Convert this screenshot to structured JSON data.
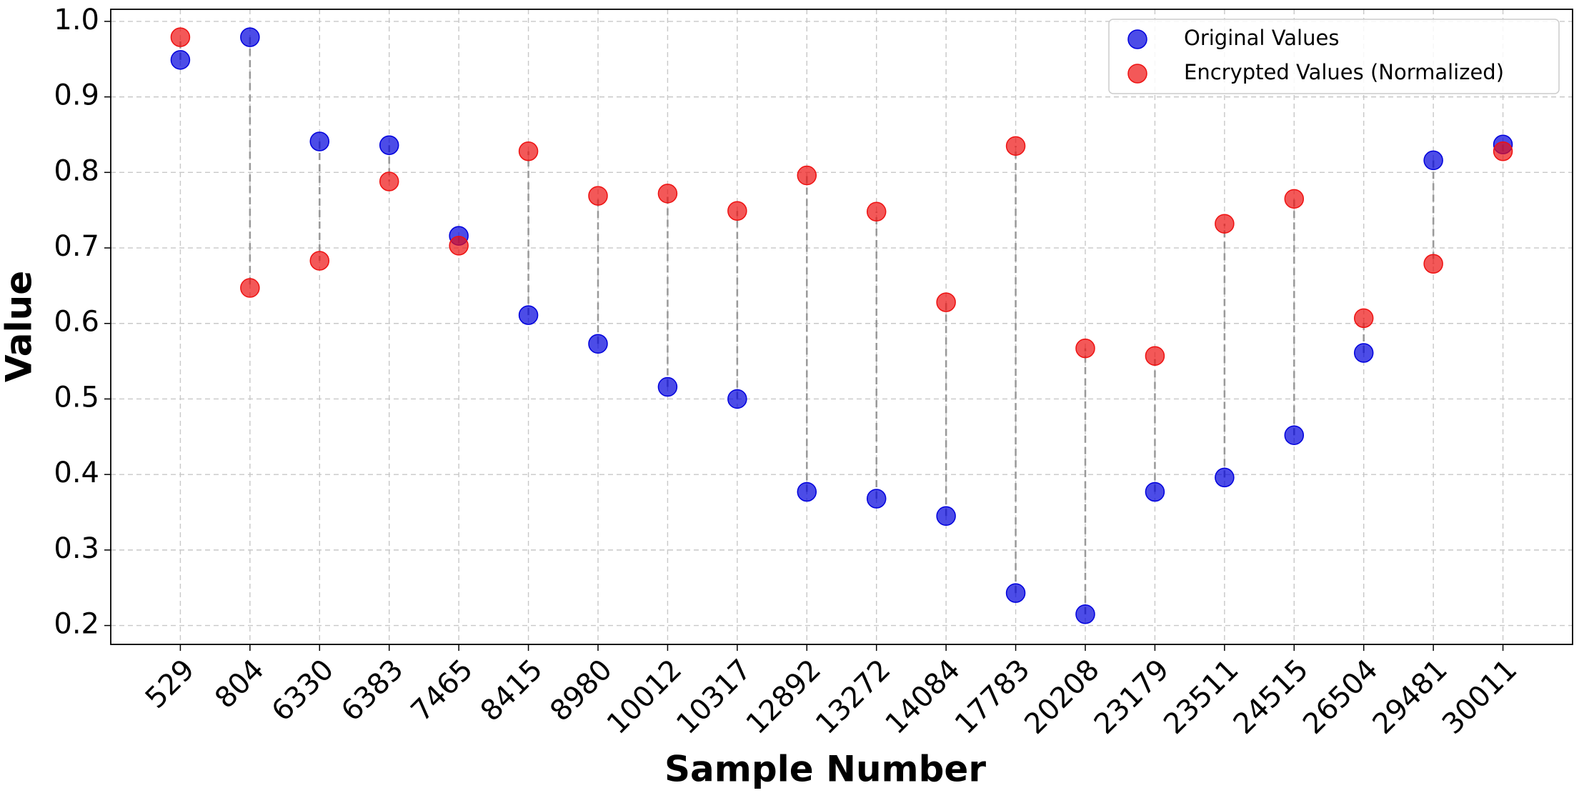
{
  "chart_data": {
    "type": "scatter",
    "x_label": "Sample Number",
    "y_label": "Value",
    "categories": [
      "529",
      "804",
      "6330",
      "6383",
      "7465",
      "8415",
      "8980",
      "10012",
      "10317",
      "12892",
      "13272",
      "14084",
      "17783",
      "20208",
      "23179",
      "23511",
      "24515",
      "26504",
      "29481",
      "30011"
    ],
    "series": [
      {
        "name": "Original Values",
        "color": "#0000dd",
        "values": [
          0.949,
          0.979,
          0.841,
          0.836,
          0.716,
          0.611,
          0.573,
          0.516,
          0.5,
          0.377,
          0.368,
          0.345,
          0.243,
          0.215,
          0.377,
          0.396,
          0.452,
          0.561,
          0.816,
          0.837
        ]
      },
      {
        "name": "Encrypted Values (Normalized)",
        "color": "#ee1111",
        "values": [
          0.979,
          0.647,
          0.683,
          0.788,
          0.703,
          0.828,
          0.769,
          0.772,
          0.749,
          0.796,
          0.748,
          0.628,
          0.835,
          0.567,
          0.557,
          0.732,
          0.765,
          0.607,
          0.679,
          0.828
        ]
      }
    ],
    "ylim": [
      0.175,
      1.016
    ],
    "yticks": [
      {
        "value": 0.2,
        "label": "0.2"
      },
      {
        "value": 0.3,
        "label": "0.3"
      },
      {
        "value": 0.4,
        "label": "0.4"
      },
      {
        "value": 0.5,
        "label": "0.5"
      },
      {
        "value": 0.6,
        "label": "0.6"
      },
      {
        "value": 0.7,
        "label": "0.7"
      },
      {
        "value": 0.8,
        "label": "0.8"
      },
      {
        "value": 0.9,
        "label": "0.9"
      },
      {
        "value": 1.0,
        "label": "1.0"
      }
    ],
    "grid": true,
    "legend": "upper right"
  }
}
